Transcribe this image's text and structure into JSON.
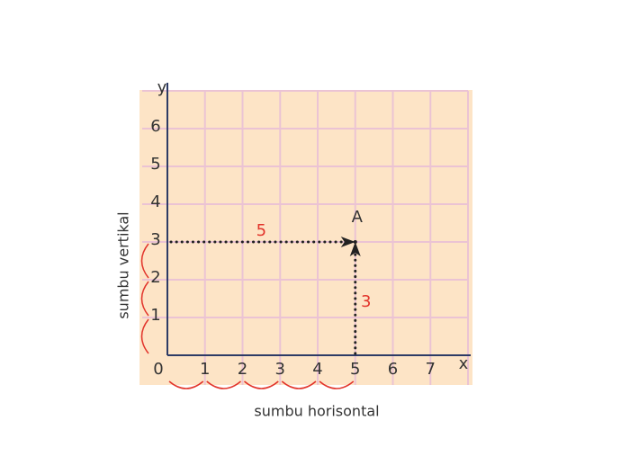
{
  "chart_data": {
    "type": "scatter",
    "x_label": "sumbu horisontal",
    "y_label": "sumbu vertikal",
    "x_axis_name": "x",
    "y_axis_name": "y",
    "series": [
      {
        "name": "A",
        "color": "#222222",
        "x": [
          5
        ],
        "values": [
          3
        ]
      }
    ],
    "annotations": [
      "5",
      "3"
    ],
    "xlim": [
      0,
      8
    ],
    "ylim": [
      0,
      7
    ],
    "xticks": [
      0,
      1,
      2,
      3,
      4,
      5,
      6,
      7
    ],
    "yticks": [
      1,
      2,
      3,
      4,
      5,
      6
    ],
    "grid": true,
    "background": "#fde4c6",
    "grid_color": "#ebc3d4",
    "axis_color": "#2d3b66",
    "annotation_color": "#e2342b"
  }
}
